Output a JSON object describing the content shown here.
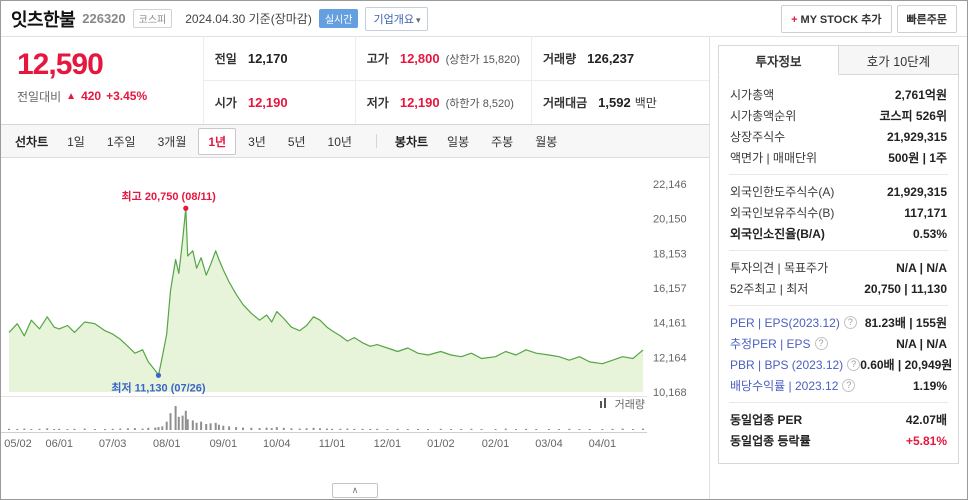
{
  "icons": {
    "caret_down": "▾",
    "plus": "+",
    "help": "?",
    "chevron_up": "∧",
    "up_arrow": "▲"
  },
  "header": {
    "stock_name": "잇츠한불",
    "stock_code": "226320",
    "market_badge": "코스피",
    "date_info": "2024.04.30 기준(장마감)",
    "realtime_badge": "실시간",
    "company_overview_label": "기업개요",
    "my_stock_label": "MY STOCK 추가",
    "quick_order_label": "빠른주문"
  },
  "price": {
    "current": "12,590",
    "change_label": "전일대비",
    "change_value": "420",
    "change_percent": "+3.45%"
  },
  "summary": {
    "rows": [
      [
        {
          "label": "전일",
          "value": "12,170",
          "red": false
        },
        {
          "label": "고가",
          "value": "12,800",
          "red": true,
          "extra": "(상한가 15,820)"
        },
        {
          "label": "거래량",
          "value": "126,237",
          "red": false
        }
      ],
      [
        {
          "label": "시가",
          "value": "12,190",
          "red": true
        },
        {
          "label": "저가",
          "value": "12,190",
          "red": true,
          "extra": "(하한가 8,520)"
        },
        {
          "label": "거래대금",
          "value": "1,592",
          "red": false,
          "unit": "백만"
        }
      ]
    ]
  },
  "chart_tabs": {
    "line_group_label": "선차트",
    "periods": [
      {
        "label": "1일",
        "active": false
      },
      {
        "label": "1주일",
        "active": false
      },
      {
        "label": "3개월",
        "active": false
      },
      {
        "label": "1년",
        "active": true
      },
      {
        "label": "3년",
        "active": false
      },
      {
        "label": "5년",
        "active": false
      },
      {
        "label": "10년",
        "active": false
      }
    ],
    "candle_group_label": "봉차트",
    "candles": [
      "일봉",
      "주봉",
      "월봉"
    ]
  },
  "chart_data": {
    "type": "area",
    "title": "잇츠한불 1년 주가 차트",
    "line_color": "#55a546",
    "fill_color": "#e8f4da",
    "volume_color": "#8f8f8f",
    "y_ticks": [
      "22,146",
      "20,150",
      "18,153",
      "16,157",
      "14,161",
      "12,164",
      "10,168"
    ],
    "y_range": [
      10168,
      22146
    ],
    "x_ticks": [
      {
        "label": "05/02",
        "pos": 0.0
      },
      {
        "label": "06/01",
        "pos": 0.079
      },
      {
        "label": "07/03",
        "pos": 0.163
      },
      {
        "label": "08/01",
        "pos": 0.248
      },
      {
        "label": "09/01",
        "pos": 0.337
      },
      {
        "label": "10/04",
        "pos": 0.421
      },
      {
        "label": "11/01",
        "pos": 0.508
      },
      {
        "label": "12/01",
        "pos": 0.595
      },
      {
        "label": "01/02",
        "pos": 0.679
      },
      {
        "label": "02/01",
        "pos": 0.765
      },
      {
        "label": "03/04",
        "pos": 0.849
      },
      {
        "label": "04/01",
        "pos": 0.933
      }
    ],
    "annotations": {
      "high": {
        "label": "최고 20,750 (08/11)",
        "price": 20750,
        "pos": 0.278,
        "color": "#e5173f"
      },
      "low": {
        "label": "최저 11,130 (07/26)",
        "price": 11130,
        "pos": 0.235,
        "color": "#3a64c8"
      }
    },
    "volume_legend": "거래량",
    "points": [
      [
        0.0,
        13600
      ],
      [
        0.013,
        14100
      ],
      [
        0.024,
        13400
      ],
      [
        0.035,
        14300
      ],
      [
        0.048,
        13800
      ],
      [
        0.06,
        14500
      ],
      [
        0.071,
        13900
      ],
      [
        0.079,
        13800
      ],
      [
        0.092,
        14000
      ],
      [
        0.103,
        13600
      ],
      [
        0.119,
        14200
      ],
      [
        0.135,
        14100
      ],
      [
        0.151,
        13700
      ],
      [
        0.163,
        13500
      ],
      [
        0.175,
        13200
      ],
      [
        0.187,
        12800
      ],
      [
        0.198,
        12400
      ],
      [
        0.21,
        12600
      ],
      [
        0.219,
        11900
      ],
      [
        0.23,
        11400
      ],
      [
        0.235,
        11130
      ],
      [
        0.241,
        12200
      ],
      [
        0.248,
        13500
      ],
      [
        0.254,
        16000
      ],
      [
        0.262,
        17800
      ],
      [
        0.267,
        17000
      ],
      [
        0.273,
        18900
      ],
      [
        0.278,
        20750
      ],
      [
        0.281,
        18000
      ],
      [
        0.289,
        18300
      ],
      [
        0.295,
        17300
      ],
      [
        0.302,
        17900
      ],
      [
        0.31,
        16900
      ],
      [
        0.317,
        17500
      ],
      [
        0.325,
        18300
      ],
      [
        0.33,
        17800
      ],
      [
        0.337,
        17200
      ],
      [
        0.346,
        16500
      ],
      [
        0.357,
        15800
      ],
      [
        0.368,
        15200
      ],
      [
        0.381,
        14700
      ],
      [
        0.394,
        14300
      ],
      [
        0.405,
        14600
      ],
      [
        0.413,
        14200
      ],
      [
        0.421,
        14800
      ],
      [
        0.432,
        14400
      ],
      [
        0.444,
        13900
      ],
      [
        0.457,
        13700
      ],
      [
        0.468,
        14000
      ],
      [
        0.479,
        14500
      ],
      [
        0.489,
        14300
      ],
      [
        0.5,
        13900
      ],
      [
        0.508,
        13700
      ],
      [
        0.521,
        13400
      ],
      [
        0.532,
        13100
      ],
      [
        0.543,
        13300
      ],
      [
        0.556,
        13000
      ],
      [
        0.568,
        12800
      ],
      [
        0.579,
        12900
      ],
      [
        0.595,
        12700
      ],
      [
        0.611,
        12500
      ],
      [
        0.627,
        12700
      ],
      [
        0.643,
        12400
      ],
      [
        0.659,
        12300
      ],
      [
        0.679,
        12500
      ],
      [
        0.695,
        12300
      ],
      [
        0.711,
        12200
      ],
      [
        0.727,
        12400
      ],
      [
        0.743,
        12100
      ],
      [
        0.765,
        12200
      ],
      [
        0.781,
        12500
      ],
      [
        0.797,
        12300
      ],
      [
        0.813,
        12600
      ],
      [
        0.829,
        12400
      ],
      [
        0.849,
        12300
      ],
      [
        0.865,
        12200
      ],
      [
        0.881,
        12000
      ],
      [
        0.897,
        12200
      ],
      [
        0.913,
        11900
      ],
      [
        0.933,
        11800
      ],
      [
        0.949,
        12000
      ],
      [
        0.965,
        12200
      ],
      [
        0.981,
        12100
      ],
      [
        0.997,
        12590
      ]
    ],
    "volume": [
      5,
      4,
      6,
      4,
      5,
      7,
      4,
      5,
      4,
      5,
      6,
      4,
      4,
      5,
      6,
      7,
      8,
      6,
      9,
      10,
      12,
      15,
      35,
      70,
      100,
      55,
      60,
      80,
      45,
      40,
      30,
      35,
      25,
      28,
      30,
      22,
      18,
      15,
      12,
      10,
      9,
      8,
      10,
      8,
      12,
      9,
      7,
      6,
      7,
      9,
      7,
      6,
      5,
      5,
      6,
      5,
      5,
      4,
      5,
      4,
      5,
      4,
      4,
      4,
      5,
      4,
      4,
      5,
      4,
      4,
      6,
      4,
      5,
      4,
      4,
      4,
      5,
      4,
      4,
      4,
      5,
      6,
      4,
      6
    ]
  },
  "sidebar": {
    "tabs": [
      {
        "label": "투자정보",
        "active": true
      },
      {
        "label": "호가 10단계",
        "active": false
      }
    ],
    "rows": [
      {
        "label": "시가총액",
        "value": "2,761억원"
      },
      {
        "label": "시가총액순위",
        "value": "코스피 526위"
      },
      {
        "label": "상장주식수",
        "value": "21,929,315"
      },
      {
        "label": "액면가 | 매매단위",
        "value": "500원 | 1주"
      },
      {
        "divider": true
      },
      {
        "label": "외국인한도주식수(A)",
        "value": "21,929,315"
      },
      {
        "label": "외국인보유주식수(B)",
        "value": "117,171"
      },
      {
        "label": "외국인소진율(B/A)",
        "value": "0.53%",
        "bold_label": true
      },
      {
        "divider": true
      },
      {
        "label": "투자의견 | 목표주가",
        "value": "N/A | N/A"
      },
      {
        "label": "52주최고 | 최저",
        "value": "20,750 | 11,130"
      },
      {
        "divider": true
      },
      {
        "label": "PER | EPS(2023.12)",
        "value": "81.23배 | 155원",
        "blue_label": true,
        "help": true
      },
      {
        "label": "추정PER | EPS",
        "value": "N/A | N/A",
        "blue_label": true,
        "help": true
      },
      {
        "label": "PBR | BPS (2023.12)",
        "value": "0.60배 | 20,949원",
        "blue_label": true,
        "help": true
      },
      {
        "label": "배당수익률 | 2023.12",
        "value": "1.19%",
        "blue_label": true,
        "help": true
      },
      {
        "divider": true
      },
      {
        "label": "동일업종 PER",
        "value": "42.07배",
        "bold_label": true
      },
      {
        "label": "동일업종 등락률",
        "value": "+5.81%",
        "bold_label": true,
        "red_value": true
      }
    ]
  }
}
